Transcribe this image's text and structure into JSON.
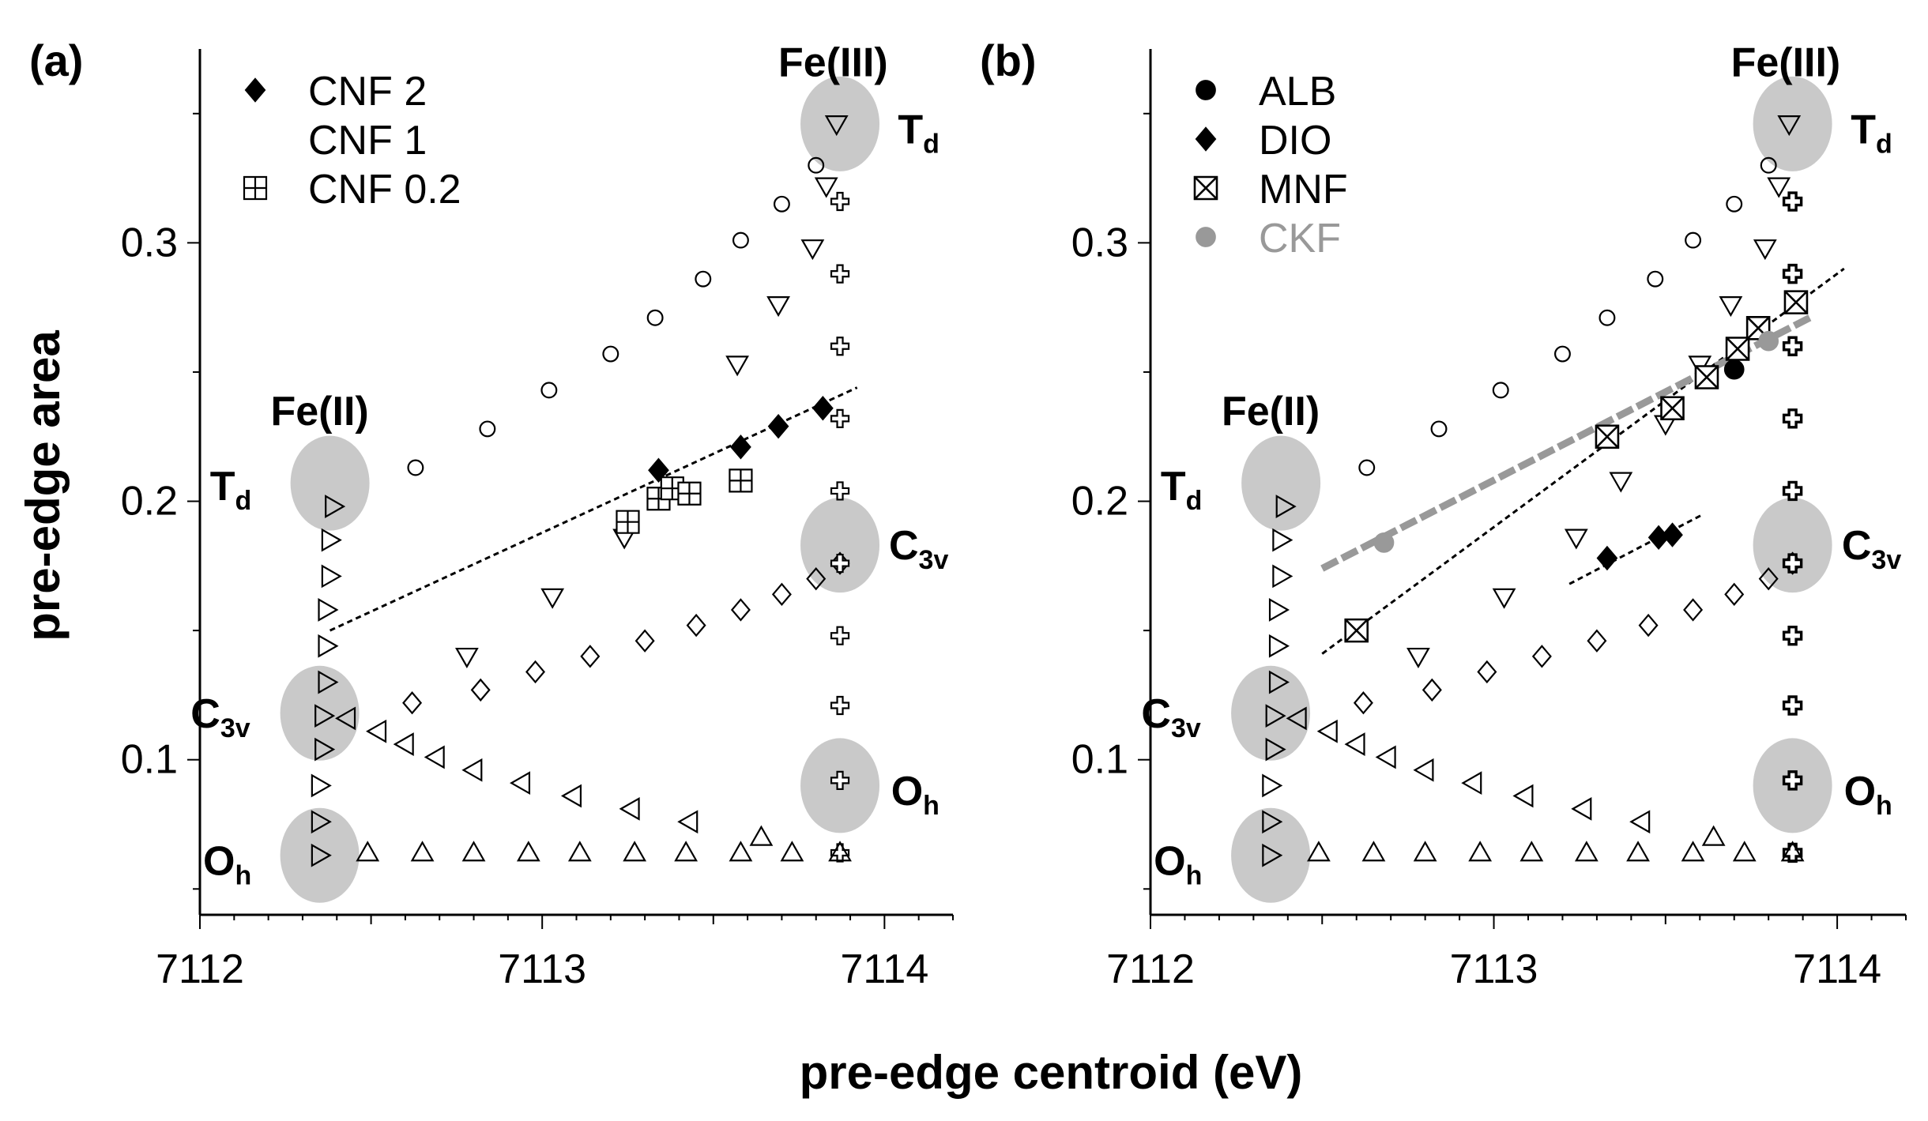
{
  "figure": {
    "xlabel": "pre-edge centroid (eV)",
    "ylabel": "pre-edge area"
  },
  "chart_data": [
    {
      "panel_label": "(a)",
      "type": "scatter",
      "xlim": [
        7112,
        7114.2
      ],
      "ylim": [
        0.04,
        0.375
      ],
      "xticks": [
        7112,
        7113,
        7114
      ],
      "yticks": [
        0.1,
        0.2,
        0.3
      ],
      "xtick_labels": [
        "7112",
        "7113",
        "7114"
      ],
      "ytick_labels": [
        "0.1",
        "0.2",
        "0.3"
      ],
      "regions": [
        {
          "id": "fe2-td",
          "x": 7112.38,
          "y": 0.207,
          "label": "T",
          "sub": "d",
          "lx": 7112.09,
          "ly": 0.206
        },
        {
          "id": "fe2-c3v",
          "x": 7112.35,
          "y": 0.118,
          "label": "C",
          "sub": "3v",
          "lx": 7112.06,
          "ly": 0.118
        },
        {
          "id": "fe2-oh",
          "x": 7112.35,
          "y": 0.063,
          "label": "O",
          "sub": "h",
          "lx": 7112.08,
          "ly": 0.061
        },
        {
          "id": "fe3-td",
          "x": 7113.87,
          "y": 0.346,
          "label": "T",
          "sub": "d",
          "lx": 7114.1,
          "ly": 0.344
        },
        {
          "id": "fe3-c3v",
          "x": 7113.87,
          "y": 0.183,
          "label": "C",
          "sub": "3v",
          "lx": 7114.1,
          "ly": 0.183
        },
        {
          "id": "fe3-oh",
          "x": 7113.87,
          "y": 0.09,
          "label": "O",
          "sub": "h",
          "lx": 7114.09,
          "ly": 0.088
        }
      ],
      "group_labels": [
        {
          "text": "Fe(II)",
          "x": 7112.35,
          "y": 0.235
        },
        {
          "text": "Fe(III)",
          "x": 7113.85,
          "y": 0.37
        }
      ],
      "reference_series": [
        {
          "marker": "circle",
          "x": [
            7112.63,
            7112.84,
            7113.02,
            7113.2,
            7113.33,
            7113.47,
            7113.58,
            7113.7,
            7113.8
          ],
          "y": [
            0.213,
            0.228,
            0.243,
            0.257,
            0.271,
            0.286,
            0.301,
            0.315,
            0.33
          ]
        },
        {
          "marker": "triangle-down",
          "x": [
            7113.24,
            7113.03,
            7112.78
          ],
          "y": [
            0.186,
            0.163,
            0.14
          ]
        },
        {
          "marker": "triangle-down",
          "x": [
            7113.57,
            7113.69,
            7113.79,
            7113.83,
            7113.86
          ],
          "y": [
            0.253,
            0.276,
            0.298,
            0.322,
            0.346
          ]
        },
        {
          "marker": "diamond",
          "x": [
            7112.62,
            7112.82,
            7112.98,
            7113.14,
            7113.3,
            7113.45,
            7113.58,
            7113.7,
            7113.8,
            7113.87
          ],
          "y": [
            0.122,
            0.127,
            0.134,
            0.14,
            0.146,
            0.152,
            0.158,
            0.164,
            0.17,
            0.176
          ]
        },
        {
          "marker": "plus",
          "x": [
            7113.87,
            7113.87,
            7113.87,
            7113.87,
            7113.87,
            7113.87,
            7113.87,
            7113.87,
            7113.87,
            7113.87
          ],
          "y": [
            0.064,
            0.092,
            0.121,
            0.148,
            0.176,
            0.204,
            0.232,
            0.26,
            0.288,
            0.316
          ]
        },
        {
          "marker": "triangle-right",
          "x": [
            7112.35,
            7112.35,
            7112.35,
            7112.36,
            7112.36,
            7112.37,
            7112.37,
            7112.37,
            7112.38,
            7112.38,
            7112.39
          ],
          "y": [
            0.063,
            0.076,
            0.09,
            0.104,
            0.117,
            0.13,
            0.144,
            0.158,
            0.171,
            0.185,
            0.198
          ]
        },
        {
          "marker": "triangle-left",
          "x": [
            7112.43,
            7112.52,
            7112.6,
            7112.69,
            7112.8,
            7112.94,
            7113.09,
            7113.26,
            7113.43
          ],
          "y": [
            0.116,
            0.111,
            0.106,
            0.101,
            0.096,
            0.091,
            0.086,
            0.081,
            0.076
          ]
        },
        {
          "marker": "triangle-up",
          "x": [
            7112.49,
            7112.65,
            7112.8,
            7112.96,
            7113.11,
            7113.27,
            7113.42,
            7113.58,
            7113.73,
            7113.87
          ],
          "y": [
            0.064,
            0.064,
            0.064,
            0.064,
            0.064,
            0.064,
            0.064,
            0.064,
            0.064,
            0.064
          ]
        },
        {
          "marker": "triangle-up",
          "x": [
            7113.64
          ],
          "y": [
            0.07
          ]
        }
      ],
      "series": [
        {
          "name": "CNF 2",
          "marker": "diamond-filled",
          "x": [
            7113.34,
            7113.58,
            7113.69,
            7113.82
          ],
          "y": [
            0.212,
            0.221,
            0.229,
            0.236
          ]
        },
        {
          "name": "CNF 1",
          "marker": "none",
          "x": [],
          "y": []
        },
        {
          "name": "CNF 0.2",
          "marker": "square-plus",
          "x": [
            7113.25,
            7113.34,
            7113.38,
            7113.43,
            7113.58
          ],
          "y": [
            0.192,
            0.201,
            0.205,
            0.203,
            0.208
          ]
        }
      ],
      "fit_lines": [
        {
          "style": "dotted-black",
          "x": [
            7112.38,
            7113.92
          ],
          "y": [
            0.15,
            0.244
          ]
        }
      ],
      "legend_position": "top-left"
    },
    {
      "panel_label": "(b)",
      "type": "scatter",
      "xlim": [
        7112,
        7114.2
      ],
      "ylim": [
        0.04,
        0.375
      ],
      "xticks": [
        7112,
        7113,
        7114
      ],
      "yticks": [
        0.1,
        0.2,
        0.3
      ],
      "xtick_labels": [
        "7112",
        "7113",
        "7114"
      ],
      "ytick_labels": [
        "0.1",
        "0.2",
        "0.3"
      ],
      "regions": [
        {
          "id": "fe2-td",
          "x": 7112.38,
          "y": 0.207,
          "label": "T",
          "sub": "d",
          "lx": 7112.09,
          "ly": 0.206
        },
        {
          "id": "fe2-c3v",
          "x": 7112.35,
          "y": 0.118,
          "label": "C",
          "sub": "3v",
          "lx": 7112.06,
          "ly": 0.118
        },
        {
          "id": "fe2-oh",
          "x": 7112.35,
          "y": 0.063,
          "label": "O",
          "sub": "h",
          "lx": 7112.08,
          "ly": 0.061
        },
        {
          "id": "fe3-td",
          "x": 7113.87,
          "y": 0.346,
          "label": "T",
          "sub": "d",
          "lx": 7114.1,
          "ly": 0.344
        },
        {
          "id": "fe3-c3v",
          "x": 7113.87,
          "y": 0.183,
          "label": "C",
          "sub": "3v",
          "lx": 7114.1,
          "ly": 0.183
        },
        {
          "id": "fe3-oh",
          "x": 7113.87,
          "y": 0.09,
          "label": "O",
          "sub": "h",
          "lx": 7114.09,
          "ly": 0.088
        }
      ],
      "group_labels": [
        {
          "text": "Fe(II)",
          "x": 7112.35,
          "y": 0.235
        },
        {
          "text": "Fe(III)",
          "x": 7113.85,
          "y": 0.37
        }
      ],
      "reference_series": [
        {
          "marker": "circle",
          "x": [
            7112.63,
            7112.84,
            7113.02,
            7113.2,
            7113.33,
            7113.47,
            7113.58,
            7113.7,
            7113.8
          ],
          "y": [
            0.213,
            0.228,
            0.243,
            0.257,
            0.271,
            0.286,
            0.301,
            0.315,
            0.33
          ]
        },
        {
          "marker": "triangle-down",
          "x": [
            7113.24,
            7113.03,
            7112.78
          ],
          "y": [
            0.186,
            0.163,
            0.14
          ]
        },
        {
          "marker": "triangle-down",
          "x": [
            7113.37,
            7113.5,
            7113.6,
            7113.69,
            7113.79,
            7113.83,
            7113.86
          ],
          "y": [
            0.208,
            0.23,
            0.253,
            0.276,
            0.298,
            0.322,
            0.346
          ]
        },
        {
          "marker": "diamond",
          "x": [
            7112.62,
            7112.82,
            7112.98,
            7113.14,
            7113.3,
            7113.45,
            7113.58,
            7113.7,
            7113.8,
            7113.87
          ],
          "y": [
            0.122,
            0.127,
            0.134,
            0.14,
            0.146,
            0.152,
            0.158,
            0.164,
            0.17,
            0.176
          ]
        },
        {
          "marker": "plus-bold",
          "x": [
            7113.87,
            7113.87,
            7113.87,
            7113.87,
            7113.87,
            7113.87,
            7113.87,
            7113.87,
            7113.87,
            7113.87
          ],
          "y": [
            0.064,
            0.092,
            0.121,
            0.148,
            0.176,
            0.204,
            0.232,
            0.26,
            0.288,
            0.316
          ]
        },
        {
          "marker": "triangle-right",
          "x": [
            7112.35,
            7112.35,
            7112.35,
            7112.36,
            7112.36,
            7112.37,
            7112.37,
            7112.37,
            7112.38,
            7112.38,
            7112.39
          ],
          "y": [
            0.063,
            0.076,
            0.09,
            0.104,
            0.117,
            0.13,
            0.144,
            0.158,
            0.171,
            0.185,
            0.198
          ]
        },
        {
          "marker": "triangle-left",
          "x": [
            7112.43,
            7112.52,
            7112.6,
            7112.69,
            7112.8,
            7112.94,
            7113.09,
            7113.26,
            7113.43
          ],
          "y": [
            0.116,
            0.111,
            0.106,
            0.101,
            0.096,
            0.091,
            0.086,
            0.081,
            0.076
          ]
        },
        {
          "marker": "triangle-up",
          "x": [
            7112.49,
            7112.65,
            7112.8,
            7112.96,
            7113.11,
            7113.27,
            7113.42,
            7113.58,
            7113.73,
            7113.87
          ],
          "y": [
            0.064,
            0.064,
            0.064,
            0.064,
            0.064,
            0.064,
            0.064,
            0.064,
            0.064,
            0.064
          ]
        },
        {
          "marker": "triangle-up",
          "x": [
            7113.64
          ],
          "y": [
            0.07
          ]
        }
      ],
      "series": [
        {
          "name": "ALB",
          "marker": "circle-filled",
          "color": "#000000",
          "x": [
            7113.7
          ],
          "y": [
            0.251
          ]
        },
        {
          "name": "DIO",
          "marker": "diamond-filled",
          "color": "#000000",
          "x": [
            7113.33,
            7113.48,
            7113.52
          ],
          "y": [
            0.178,
            0.186,
            0.187
          ]
        },
        {
          "name": "MNF",
          "marker": "square-x",
          "color": "#000000",
          "x": [
            7112.6,
            7113.33,
            7113.52,
            7113.62,
            7113.71,
            7113.77,
            7113.88
          ],
          "y": [
            0.15,
            0.225,
            0.236,
            0.248,
            0.259,
            0.267,
            0.277
          ]
        },
        {
          "name": "CKF",
          "marker": "circle-filled",
          "color": "#999999",
          "x": [
            7112.68,
            7113.8
          ],
          "y": [
            0.184,
            0.262
          ]
        }
      ],
      "fit_lines": [
        {
          "style": "dotted-black",
          "x": [
            7112.5,
            7114.02
          ],
          "y": [
            0.141,
            0.29
          ]
        },
        {
          "style": "dotted-black",
          "x": [
            7113.22,
            7113.61
          ],
          "y": [
            0.168,
            0.195
          ]
        },
        {
          "style": "dashed-gray-thick",
          "x": [
            7112.5,
            7113.92
          ],
          "y": [
            0.174,
            0.271
          ]
        }
      ],
      "legend_position": "top-left"
    }
  ],
  "colors": {
    "axis": "#000000",
    "region_fill": "#c9c9c9",
    "ckf": "#999999"
  }
}
